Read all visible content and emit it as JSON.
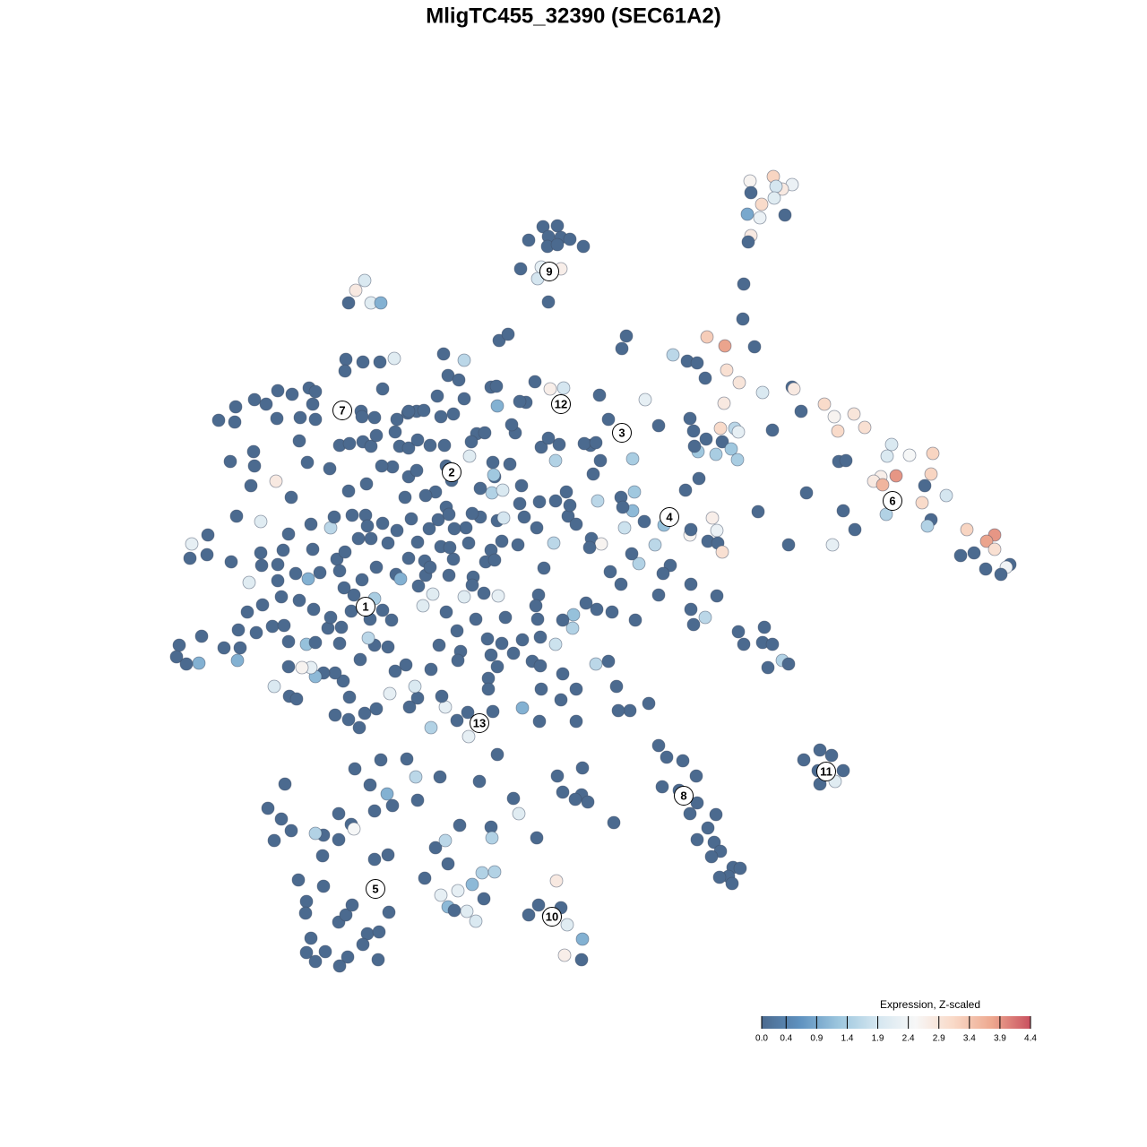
{
  "chart_data": {
    "type": "scatter",
    "title": "MligTC455_32390 (SEC61A2)",
    "x": [
      223,
      197,
      244,
      233,
      226,
      198,
      224,
      210,
      194,
      208,
      236,
      198,
      195,
      190,
      189,
      202,
      -34,
      -18,
      -28,
      -50,
      -14,
      -4,
      11,
      -29,
      -18,
      -59,
      -40,
      -30,
      -14,
      -36,
      -28,
      -233,
      -243,
      -251,
      -226,
      -215,
      59,
      54,
      111,
      127,
      138,
      149,
      169,
      171,
      147,
      185,
      211,
      244,
      246,
      168,
      80,
      29,
      254,
      280,
      291,
      313,
      325,
      295,
      222,
      164,
      180,
      184,
      148,
      166,
      139,
      159,
      176,
      183,
      355,
      350,
      375,
      401,
      399,
      296,
      304,
      360,
      343,
      335,
      345,
      392,
      416,
      389,
      349,
      399,
      395,
      301,
      314,
      289,
      240,
      206,
      260,
      439,
      470,
      461,
      470,
      432,
      447,
      487,
      483,
      460,
      477,
      130,
      134,
      135,
      95,
      140,
      125,
      155,
      130,
      160,
      150,
      161,
      166,
      131,
      101,
      91,
      57,
      68,
      53,
      66,
      79,
      55,
      27,
      20,
      31,
      18,
      73,
      65,
      108,
      100,
      131,
      95,
      160,
      131,
      147,
      134,
      69,
      53,
      41,
      26,
      43,
      14,
      0,
      -1,
      -12,
      184,
      213,
      190,
      211,
      222,
      217,
      233,
      240,
      84,
      63,
      50,
      48,
      39,
      25,
      39,
      66,
      22,
      30,
      19,
      12,
      25,
      -16,
      -36,
      -20,
      -28,
      -65,
      -69,
      -43,
      -26,
      -11,
      -53,
      -60,
      -92,
      -86,
      -85,
      -83,
      -73,
      -122,
      -145,
      -140,
      -128,
      -122,
      -152,
      -175,
      -185,
      -167,
      -148,
      -134,
      -108,
      -99,
      -114,
      -71,
      -88,
      -91,
      -79,
      -90,
      -396,
      -377,
      -378,
      -356,
      -343,
      -330,
      -314,
      -295,
      -288,
      -291,
      -305,
      -288,
      -331,
      -254,
      -235,
      -216,
      -200,
      -255,
      -213,
      -237,
      -236,
      -222,
      -197,
      -184,
      -306,
      -357,
      -383,
      -356,
      -360,
      -332,
      -315,
      -376,
      -349,
      -408,
      -426,
      -428,
      -409,
      -382,
      -362,
      -349,
      -348,
      -330,
      -324,
      -318,
      -293,
      -271,
      -267,
      -272,
      -297,
      -261,
      -250,
      -235,
      -226,
      -220,
      -199,
      -194,
      -184,
      -174,
      -160,
      -144,
      -142,
      -116,
      -89,
      -136,
      -154,
      -165,
      -188,
      -184,
      -175,
      -202,
      -214,
      -231,
      -251,
      -247,
      -232,
      -230,
      -240,
      -226,
      -213,
      -207,
      -197,
      -181,
      -174,
      -161,
      -151,
      -142,
      -148,
      -166,
      -184,
      -198,
      -220,
      -236,
      -245,
      -256,
      -222,
      -248,
      -227,
      -213,
      -203,
      -193,
      -173,
      -165,
      -139,
      -112,
      -98,
      -92,
      -80,
      -62,
      -33,
      -39,
      -42,
      -40,
      -76,
      -100,
      -122,
      -84,
      -157,
      -168,
      -142,
      -130,
      -109,
      -113,
      -134,
      -117,
      -120,
      -104,
      -85,
      -78,
      -55,
      -41,
      -22,
      -20,
      -38,
      -6,
      -4,
      3,
      -8,
      -58,
      -60,
      -104,
      -113,
      -139,
      -133,
      -160,
      -138,
      -88,
      -126,
      -150,
      -129,
      -96,
      -92,
      -80,
      -67,
      -57,
      -46,
      -37,
      -20,
      -37,
      -12,
      3,
      -14,
      -36,
      -38,
      3,
      -57,
      -85,
      -95,
      -95,
      -90,
      -85,
      -105,
      -118,
      -130,
      -143,
      -147,
      -159,
      -174,
      -183,
      -187,
      -199,
      -207,
      -222,
      -229,
      -238,
      -257,
      -266,
      -279,
      -288,
      -293,
      -303,
      -318,
      -318,
      -298,
      -288,
      -274,
      -261,
      -259,
      -271,
      -290,
      -306,
      -296,
      -326,
      -330,
      -310,
      -291,
      -283,
      -264,
      -261,
      -255,
      -347,
      -364,
      -336,
      -323,
      -354,
      -374,
      -372,
      -375,
      -390,
      -415,
      -418,
      -440,
      -443,
      -432,
      -334,
      -317,
      -309,
      -266,
      -250,
      -239,
      -251,
      -233,
      -220,
      -205,
      -177,
      -159,
      -117,
      -244,
      -215,
      -186,
      -176,
      -149,
      -227,
      -208,
      -202,
      -222,
      -174,
      -262,
      -248,
      -245,
      -262,
      -279,
      -288,
      -315,
      -334,
      -326,
      -341,
      -322,
      -127,
      -154,
      -143,
      -140,
      -166,
      -102,
      -88,
      -113,
      -129,
      -148,
      -100,
      -140,
      -133,
      -119,
      -109,
      -92,
      -91,
      -61,
      -67,
      -41,
      -18,
      -12,
      10,
      9,
      16,
      2,
      45,
      -280,
      -307,
      -298,
      -279,
      -299,
      -262,
      -254,
      -247,
      -230,
      -235,
      -217,
      -206,
      -207,
      -222,
      -293,
      -298,
      -288,
      -277,
      -252,
      -261,
      -218,
      -19,
      -14,
      -39,
      -50,
      -28,
      -7,
      10,
      -10,
      9,
      95,
      104,
      122,
      137,
      118,
      99,
      138,
      130,
      159,
      150,
      138,
      157,
      164,
      154,
      178,
      186,
      173,
      163,
      177,
      275,
      288,
      257,
      273,
      301,
      275,
      292
    ],
    "y": [
      443,
      438,
      434,
      429,
      432,
      425,
      419,
      412,
      401,
      397,
      400,
      377,
      370,
      323,
      284,
      253,
      387,
      388,
      376,
      372,
      375,
      373,
      365,
      365,
      367,
      340,
      329,
      338,
      340,
      342,
      303,
      327,
      316,
      302,
      302,
      302,
      265,
      251,
      244,
      237,
      235,
      264,
      254,
      227,
      218,
      213,
      202,
      208,
      206,
      190,
      194,
      199,
      181,
      189,
      175,
      178,
      163,
      159,
      160,
      162,
      162,
      158,
      150,
      147,
      136,
      133,
      139,
      127,
      144,
      131,
      132,
      134,
      111,
      125,
      126,
      109,
      108,
      103,
      99,
      98,
      87,
      79,
      66,
      60,
      53,
      70,
      49,
      32,
      32,
      69,
      90,
      49,
      43,
      36,
      27,
      20,
      23,
      10,
      7,
      5,
      -1,
      173,
      159,
      142,
      165,
      106,
      93,
      62,
      43,
      48,
      36,
      34,
      24,
      49,
      54,
      32,
      51,
      91,
      85,
      70,
      58,
      74,
      81,
      39,
      33,
      29,
      11,
      22,
      9,
      0,
      -12,
      -24,
      -25,
      -40,
      -49,
      -57,
      -52,
      -12,
      2,
      -40,
      -43,
      -33,
      -46,
      -61,
      -52,
      -65,
      -60,
      -79,
      -77,
      -79,
      -105,
      -97,
      -101,
      -145,
      -153,
      -153,
      -126,
      -98,
      -101,
      172,
      128,
      111,
      126,
      143,
      145,
      146,
      144,
      141,
      126,
      151,
      157,
      166,
      214,
      206,
      207,
      191,
      192,
      208,
      209,
      187,
      260,
      267,
      238,
      245,
      221,
      216,
      195,
      198,
      181,
      179,
      182,
      175,
      178,
      156,
      157,
      147,
      122,
      108,
      90,
      93,
      124,
      171,
      186,
      169,
      194,
      189,
      204,
      200,
      207,
      203,
      189,
      174,
      172,
      173,
      239,
      236,
      236,
      240,
      226,
      206,
      181,
      175,
      174,
      172,
      181,
      148,
      136,
      125,
      120,
      98,
      103,
      85,
      64,
      58,
      43,
      33,
      17,
      21,
      13,
      -10,
      23,
      9,
      10,
      26,
      44,
      55,
      51,
      63,
      117,
      124,
      143,
      145,
      147,
      142,
      154,
      158,
      142,
      140,
      149,
      143,
      143,
      120,
      131,
      110,
      104,
      91,
      87,
      85,
      108,
      115,
      119,
      120,
      100,
      92,
      65,
      65,
      53,
      39,
      39,
      56,
      34,
      48,
      61,
      35,
      50,
      60,
      74,
      30,
      14,
      17,
      -1,
      7,
      -7,
      -24,
      -16,
      -28,
      -42,
      -51,
      -41,
      -52,
      -6,
      -14,
      -2,
      -2,
      -4,
      13,
      26,
      36,
      32,
      6,
      -24,
      -36,
      -51,
      -49,
      -22,
      -26,
      -25,
      -23,
      -36,
      -43,
      -64,
      -51,
      -13,
      16,
      34,
      51,
      63,
      59,
      62,
      63,
      51,
      34,
      81,
      80,
      64,
      76,
      55,
      91,
      98,
      78,
      95,
      67,
      66,
      50,
      7,
      29,
      15,
      -87,
      -80,
      -97,
      -73,
      -91,
      -78,
      -89,
      -74,
      -98,
      -103,
      -79,
      -71,
      -112,
      -129,
      -141,
      -129,
      -165,
      -165,
      -150,
      -104,
      -117,
      -129,
      -154,
      -202,
      -232,
      -155,
      -164,
      -149,
      -137,
      -107,
      -139,
      -149,
      -102,
      -109,
      -82,
      -80,
      -72,
      -96,
      -120,
      -111,
      -111,
      -115,
      -105,
      -105,
      -104,
      -76,
      -79,
      -77,
      -61,
      -78,
      -60,
      -49,
      -40,
      -30,
      -6,
      -26,
      -8,
      0,
      27,
      1,
      16,
      3,
      24,
      -35,
      -43,
      -59,
      -58,
      -66,
      -63,
      -83,
      -97,
      -83,
      -70,
      -100,
      -80,
      -93,
      -101,
      -126,
      -137,
      -140,
      -158,
      -138,
      -172,
      -163,
      -156,
      -151,
      -134,
      -126,
      -172,
      -182,
      -218,
      -208,
      -207,
      -227,
      -227,
      -236,
      -246,
      -259,
      -265,
      -253,
      -268,
      -280,
      -285,
      -297,
      -292,
      -290,
      -287,
      -298,
      -274,
      -262,
      -235,
      -281,
      -306,
      -298,
      -324,
      -340,
      -334,
      -333,
      -347,
      -354,
      -359,
      -363,
      -372,
      -376,
      -377,
      -388,
      -283,
      -295,
      -268,
      -251,
      -295,
      -226,
      -244,
      -217,
      -247,
      -255,
      -252,
      -278,
      -315,
      -342,
      -366,
      -349,
      -379,
      -389,
      -381,
      -370,
      -402,
      -414,
      -400,
      -378,
      -314,
      -319,
      -407,
      -423,
      -433,
      -422,
      -428,
      -438,
      -431,
      -343,
      -373,
      -370,
      -381,
      -382,
      -392,
      -408,
      -426,
      -431,
      -192,
      -205,
      -209,
      -226,
      -242,
      -238,
      -256,
      -268,
      -269,
      -284,
      -297,
      -300,
      -310,
      -316,
      -328,
      -329,
      -338,
      -339,
      -346,
      -197,
      -203,
      -208,
      -220,
      -220,
      -235,
      -232
    ],
    "values": [
      3.2,
      2.6,
      2.3,
      2.8,
      1.9,
      0,
      2.1,
      3.1,
      0.9,
      2.3,
      0,
      2.8,
      0,
      0,
      0,
      0,
      0,
      0,
      0,
      0,
      0,
      0,
      0,
      0,
      0,
      0,
      1.9,
      0,
      2.7,
      2.2,
      0,
      2.0,
      2.8,
      0,
      2.1,
      1.0,
      0,
      0,
      1.6,
      0,
      0,
      3.3,
      3.8,
      3.0,
      0,
      2.9,
      2.0,
      0,
      2.8,
      2.8,
      2.2,
      0,
      0,
      3.1,
      2.6,
      2.9,
      3.0,
      3.1,
      0,
      3.1,
      1.6,
      2.2,
      0,
      0,
      1.3,
      1.4,
      1.3,
      1.4,
      2.0,
      2.0,
      2.5,
      3.2,
      3.2,
      0,
      0,
      3.9,
      2.7,
      2.8,
      3.6,
      0,
      1.9,
      3.1,
      1.5,
      0,
      1.5,
      0,
      0,
      2.2,
      0,
      0,
      0,
      3.2,
      3.9,
      3.8,
      3.0,
      0,
      0,
      0,
      2.4,
      0,
      0,
      0,
      0,
      0,
      0,
      0,
      0,
      2.7,
      2.6,
      2.3,
      0,
      0,
      3.0,
      0,
      1.2,
      1.6,
      1.8,
      1.3,
      0,
      1.1,
      0,
      0,
      1.6,
      0,
      2.6,
      0,
      1.5,
      0,
      0,
      0,
      0,
      0,
      0,
      0,
      1.6,
      0,
      0,
      0,
      0,
      0,
      0,
      0,
      1.2,
      1.5,
      0,
      0,
      0,
      0,
      0,
      0,
      0,
      1.5,
      0,
      0,
      0,
      0,
      0,
      0,
      1.6,
      0,
      1.4,
      0,
      0,
      0,
      0,
      0,
      0,
      0,
      1.5,
      0,
      0,
      0,
      0,
      2.7,
      1.9,
      0,
      0,
      0,
      0,
      1.0,
      0,
      0,
      1.6,
      0,
      0,
      0,
      0,
      0,
      0,
      0,
      0,
      0,
      0,
      0,
      0,
      0,
      0,
      0,
      1.5,
      2.0,
      0,
      0,
      0,
      0,
      0,
      0,
      0,
      0,
      0,
      0,
      0,
      0,
      0,
      0,
      0,
      0,
      0,
      2.1,
      0,
      0,
      0,
      0,
      0,
      0,
      0,
      0,
      0,
      0,
      0,
      0,
      2.8,
      0,
      0,
      2.1,
      0,
      2.2,
      0,
      0,
      0,
      2.1,
      0,
      0,
      0,
      0,
      0,
      0,
      1.6,
      0,
      0,
      0,
      0,
      0,
      0,
      0,
      0,
      0,
      0,
      0,
      0,
      0,
      0,
      0,
      2.1,
      1.3,
      0,
      0,
      0,
      0,
      0,
      0,
      0,
      0,
      0,
      0,
      0,
      0,
      0,
      0,
      0,
      0,
      0,
      0,
      0,
      0,
      0,
      0,
      0,
      0,
      0,
      0,
      0,
      0,
      0,
      0,
      0,
      1.4,
      0,
      0,
      0,
      0,
      1.0,
      0,
      0,
      0,
      0,
      0,
      0,
      0,
      0,
      0,
      0,
      0,
      0,
      0,
      0,
      2.1,
      2.2,
      2.1,
      2.1,
      0,
      0,
      0,
      0,
      0,
      0,
      0,
      0,
      0,
      1.9,
      0,
      0,
      1.6,
      0,
      0,
      0,
      0,
      0,
      0,
      0,
      0,
      0,
      0,
      0,
      0,
      0,
      0,
      0,
      0,
      0,
      0,
      0,
      0,
      0,
      0,
      0,
      0,
      0,
      1.8,
      0,
      0,
      0,
      0,
      0,
      0,
      0,
      1.0,
      0,
      0,
      0,
      0,
      0,
      0,
      0,
      0,
      2.2,
      0,
      0,
      0,
      0,
      0,
      0,
      0,
      0,
      1.6,
      0,
      0,
      0,
      0,
      1.1,
      2.2,
      2.6,
      0,
      0,
      1.2,
      0,
      0,
      0,
      0,
      0,
      0,
      0,
      1.0,
      0,
      0,
      0,
      0,
      0,
      0,
      0,
      0,
      0,
      0,
      0,
      0,
      0,
      0,
      0,
      1.0,
      0,
      0,
      1.0,
      0,
      0,
      0,
      2.0,
      0,
      0,
      0,
      0,
      0,
      0,
      0,
      0,
      2.2,
      2.0,
      1.5,
      2.2,
      0,
      0,
      0,
      1.6,
      0,
      0,
      1.0,
      0,
      0,
      0,
      0,
      0,
      2.5,
      0,
      0,
      1.5,
      0,
      0,
      0,
      0,
      0,
      0,
      0,
      1.6,
      0,
      0,
      1.5,
      1.5,
      1.1,
      2.2,
      2.2,
      0,
      1.1,
      0,
      2.1,
      2.0,
      0,
      1.5,
      2.1,
      0,
      0,
      0,
      0,
      0,
      0,
      0,
      0,
      0,
      0,
      0,
      0,
      0,
      0,
      0,
      0,
      0,
      0,
      0,
      0,
      0,
      0,
      0,
      0,
      0,
      0,
      0,
      0,
      0,
      0,
      2.8,
      0,
      0,
      0,
      0,
      2.1,
      1.0,
      2.7,
      0,
      0,
      0,
      0,
      0,
      0,
      0,
      0,
      0,
      0,
      0,
      0,
      0,
      0,
      0,
      0,
      0,
      0,
      0,
      0,
      0,
      0,
      0,
      0,
      0,
      0,
      2.1
    ],
    "clusters": {
      "labels": [
        "1",
        "2",
        "3",
        "4",
        "5",
        "6",
        "7",
        "8",
        "9",
        "10",
        "11",
        "12",
        "13"
      ],
      "x": [
        -232,
        -136,
        54,
        107,
        -221,
        356,
        -258,
        123,
        -27,
        -24,
        282,
        -14,
        -105
      ],
      "y": [
        -37,
        113,
        157,
        63,
        -352,
        81,
        182,
        -248,
        337,
        -383,
        -221,
        189,
        -167
      ]
    },
    "colorbar": {
      "title": "Expression, Z-scaled",
      "ticks": [
        {
          "value": 0,
          "label": "0.0"
        },
        0.4,
        0.9,
        1.4,
        1.9,
        2.4,
        2.9,
        3.4,
        3.9,
        4.4
      ],
      "colorscale": [
        "#4b6a8f",
        "#5f92c0",
        "#9cc6de",
        "#d4e6f0",
        "#f7f7f7",
        "#f9d9c7",
        "#eda88f",
        "#c9505f"
      ]
    }
  }
}
